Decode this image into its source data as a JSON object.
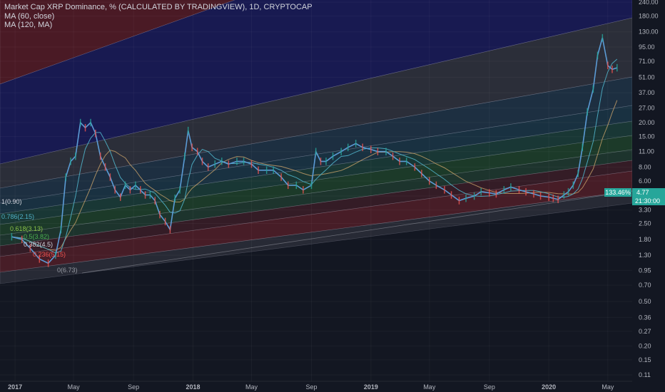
{
  "header": {
    "title": "Market Cap XRP Dominance, % (CALCULATED BY TRADINGVIEW), 1D, CRYPTOCAP",
    "ma1": "MA (60, close)",
    "ma2": "MA (120, MA)"
  },
  "price_tag": {
    "pct": "133.46%",
    "value": "4.77",
    "countdown": "21:30:00"
  },
  "colors": {
    "background": "#131722",
    "price_line": "#5b9bd5",
    "ma60": "#4fb0c6",
    "ma120": "#c9a26a",
    "up": "#26a69a",
    "down": "#ef5350"
  },
  "chart_data": {
    "type": "line",
    "title": "Market Cap XRP Dominance, % (CALCULATED BY TRADINGVIEW), 1D, CRYPTOCAP",
    "y_scale": "log",
    "ylim": [
      0.1,
      300
    ],
    "y_ticks": [
      240,
      180,
      130,
      95,
      71,
      51,
      37,
      27,
      20,
      15,
      11,
      8,
      6,
      4.4,
      3.3,
      2.5,
      1.8,
      1.3,
      0.95,
      0.7,
      0.5,
      0.36,
      0.27,
      0.2,
      0.15,
      0.11
    ],
    "y_tick_labels": [
      "240.00",
      "180.00",
      "130.00",
      "95.00",
      "71.00",
      "51.00",
      "37.00",
      "27.00",
      "20.00",
      "15.00",
      "11.00",
      "8.00",
      "6.00",
      "4.40",
      "3.30",
      "2.50",
      "1.80",
      "1.30",
      "0.95",
      "0.70",
      "0.50",
      "0.36",
      "0.27",
      "0.20",
      "0.15",
      "0.11"
    ],
    "xlim": [
      "2016-12-01",
      "2020-06-20"
    ],
    "x_ticks": [
      {
        "date": "2017-01-01",
        "label": "2017",
        "bold": true
      },
      {
        "date": "2017-05-01",
        "label": "May",
        "bold": false
      },
      {
        "date": "2017-09-01",
        "label": "Sep",
        "bold": false
      },
      {
        "date": "2018-01-01",
        "label": "2018",
        "bold": true
      },
      {
        "date": "2018-05-01",
        "label": "May",
        "bold": false
      },
      {
        "date": "2018-09-01",
        "label": "Sep",
        "bold": false
      },
      {
        "date": "2019-01-01",
        "label": "2019",
        "bold": true
      },
      {
        "date": "2019-05-01",
        "label": "May",
        "bold": false
      },
      {
        "date": "2019-09-01",
        "label": "Sep",
        "bold": false
      },
      {
        "date": "2020-01-01",
        "label": "2020",
        "bold": true
      },
      {
        "date": "2020-05-01",
        "label": "May",
        "bold": false
      }
    ],
    "series": [
      {
        "name": "XRP Dominance",
        "x": [
          "2016-12-25",
          "2017-01-15",
          "2017-02-01",
          "2017-02-20",
          "2017-03-10",
          "2017-03-25",
          "2017-04-05",
          "2017-04-15",
          "2017-04-25",
          "2017-05-05",
          "2017-05-15",
          "2017-05-25",
          "2017-06-05",
          "2017-06-15",
          "2017-06-25",
          "2017-07-05",
          "2017-07-15",
          "2017-07-25",
          "2017-08-05",
          "2017-08-15",
          "2017-08-25",
          "2017-09-05",
          "2017-09-15",
          "2017-09-25",
          "2017-10-05",
          "2017-10-15",
          "2017-10-25",
          "2017-11-05",
          "2017-11-15",
          "2017-11-25",
          "2017-12-05",
          "2017-12-15",
          "2017-12-22",
          "2017-12-30",
          "2018-01-10",
          "2018-01-20",
          "2018-02-01",
          "2018-02-15",
          "2018-03-01",
          "2018-03-15",
          "2018-04-01",
          "2018-04-15",
          "2018-05-01",
          "2018-05-15",
          "2018-06-01",
          "2018-06-15",
          "2018-07-01",
          "2018-07-15",
          "2018-08-01",
          "2018-08-15",
          "2018-09-01",
          "2018-09-10",
          "2018-09-20",
          "2018-10-01",
          "2018-10-15",
          "2018-11-01",
          "2018-11-15",
          "2018-12-01",
          "2018-12-15",
          "2019-01-01",
          "2019-01-15",
          "2019-02-01",
          "2019-02-15",
          "2019-03-01",
          "2019-03-15",
          "2019-04-01",
          "2019-04-15",
          "2019-05-01",
          "2019-05-15",
          "2019-06-01",
          "2019-06-15",
          "2019-07-01",
          "2019-07-15",
          "2019-08-01",
          "2019-08-15",
          "2019-09-01",
          "2019-09-15",
          "2019-10-01",
          "2019-10-15",
          "2019-11-01",
          "2019-11-15",
          "2019-12-01",
          "2019-12-15",
          "2020-01-01",
          "2020-01-10",
          "2020-01-20",
          "2020-02-01",
          "2020-02-10",
          "2020-02-20",
          "2020-03-01",
          "2020-03-10",
          "2020-03-20",
          "2020-04-01",
          "2020-04-10",
          "2020-04-20",
          "2020-05-01",
          "2020-05-10",
          "2020-05-20"
        ],
        "values": [
          1.9,
          1.8,
          1.5,
          1.2,
          1.1,
          1.3,
          2.2,
          6.5,
          9.0,
          10.0,
          20.0,
          18.0,
          20.0,
          16.0,
          10.0,
          8.0,
          6.5,
          5.0,
          4.3,
          5.5,
          5.0,
          5.5,
          5.0,
          4.5,
          4.5,
          4.0,
          3.0,
          2.6,
          2.2,
          4.2,
          5.0,
          10.0,
          17.0,
          12.0,
          11.0,
          9.0,
          8.0,
          8.5,
          9.0,
          8.5,
          9.0,
          9.0,
          8.5,
          7.5,
          7.5,
          7.5,
          6.5,
          5.5,
          5.5,
          5.0,
          5.5,
          11.0,
          9.0,
          9.0,
          10.0,
          11.0,
          12.0,
          13.0,
          12.0,
          11.5,
          11.0,
          11.0,
          10.0,
          9.0,
          9.0,
          8.0,
          7.0,
          6.0,
          5.5,
          5.0,
          4.5,
          4.0,
          4.2,
          4.4,
          4.8,
          4.7,
          4.6,
          5.0,
          5.3,
          5.0,
          4.8,
          4.6,
          4.4,
          4.3,
          4.2,
          4.1,
          4.5,
          4.8,
          5.5,
          7.0,
          12.0,
          25.0,
          40.0,
          80.0,
          115.0,
          65.0,
          60.0,
          62.0
        ]
      }
    ],
    "fib_channel_levels": [
      {
        "label": "1(0.90)",
        "color": "#d1d4dc"
      },
      {
        "label": "0.786(2.15)",
        "color": "#4fb0c6"
      },
      {
        "label": "0.618(3.13)",
        "color": "#8bc34a"
      },
      {
        "label": "0.5(3.82)",
        "color": "#4caf50"
      },
      {
        "label": "0.382(4.5)",
        "color": "#d1d4dc"
      },
      {
        "label": "0.236(5.15)",
        "color": "#ef5350"
      },
      {
        "label": "0(6.73)",
        "color": "#9598a1"
      }
    ]
  }
}
